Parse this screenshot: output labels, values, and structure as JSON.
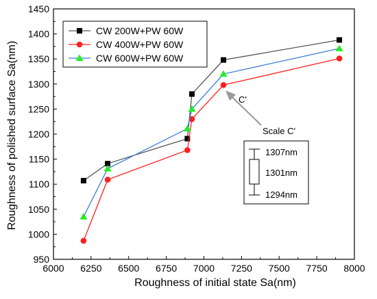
{
  "chart_data": {
    "type": "line",
    "title": "",
    "xlabel": "Roughness of initial state Sa(nm)",
    "ylabel": "Roughness of  polished surface Sa(nm)",
    "xlim": [
      6000,
      8000
    ],
    "ylim": [
      950,
      1450
    ],
    "x_ticks": [
      6000,
      6250,
      6500,
      6750,
      7000,
      7250,
      7500,
      7750,
      8000
    ],
    "y_ticks": [
      950,
      1000,
      1050,
      1100,
      1150,
      1200,
      1250,
      1300,
      1350,
      1400,
      1450
    ],
    "grid": false,
    "legend_position": "top-left",
    "series": [
      {
        "name": "CW 200W+PW 60W",
        "color": "#000000",
        "line_color": "#555555",
        "marker": "square",
        "x": [
          6200,
          6360,
          6890,
          6920,
          7130,
          7900
        ],
        "y": [
          1107,
          1141,
          1191,
          1280,
          1348,
          1388
        ]
      },
      {
        "name": "CW 400W+PW 60W",
        "color": "#ff1f1f",
        "line_color": "#ff1f1f",
        "marker": "circle",
        "x": [
          6200,
          6360,
          6890,
          6920,
          7130,
          7900
        ],
        "y": [
          987,
          1109,
          1168,
          1230,
          1298,
          1351
        ]
      },
      {
        "name": "CW 600W+PW 60W",
        "color": "#22ee22",
        "line_color": "#3a7bd5",
        "marker": "triangle",
        "x": [
          6200,
          6360,
          6890,
          6920,
          7130,
          7900
        ],
        "y": [
          1035,
          1131,
          1211,
          1250,
          1320,
          1371
        ]
      }
    ],
    "annotations": {
      "point_label": "C'",
      "arrow_target": {
        "x": 7130,
        "y": 1298
      },
      "inset_title": "Scale C'",
      "inset_values": [
        "1307nm",
        "1301nm",
        "1294nm"
      ]
    }
  }
}
